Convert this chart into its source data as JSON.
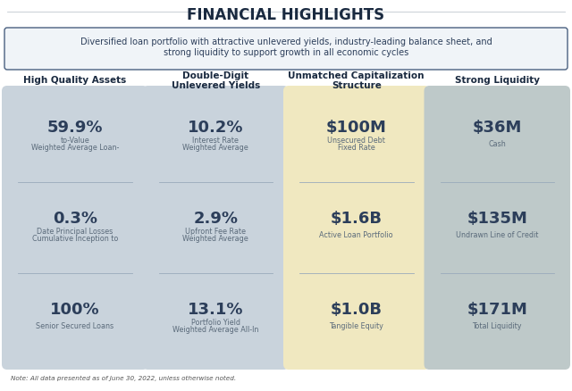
{
  "title": "FINANCIAL HIGHLIGHTS",
  "subtitle_line1": "Diversified loan portfolio with attractive unlevered yields, industry-leading balance sheet, and",
  "subtitle_line2": "strong liquidity to support growth in all economic cycles",
  "note": "Note: All data presented as of June 30, 2022, unless otherwise noted.",
  "columns": [
    {
      "header": "High Quality Assets",
      "header2": "",
      "bg_color": "#c9d3dc",
      "items": [
        {
          "value": "59.9%",
          "label": "Weighted Average Loan-\nto-Value"
        },
        {
          "value": "0.3%",
          "label": "Cumulative Inception to\nDate Principal Losses"
        },
        {
          "value": "100%",
          "label": "Senior Secured Loans"
        }
      ]
    },
    {
      "header": "Double-Digit",
      "header2": "Unlevered Yields",
      "bg_color": "#c9d3dc",
      "items": [
        {
          "value": "10.2%",
          "label": "Weighted Average\nInterest Rate"
        },
        {
          "value": "2.9%",
          "label": "Weighted Average\nUpfront Fee Rate"
        },
        {
          "value": "13.1%",
          "label": "Weighted Average All-In\nPortfolio Yield"
        }
      ]
    },
    {
      "header": "Unmatched Capitalization",
      "header2": "Structure",
      "bg_color": "#f0e8c0",
      "items": [
        {
          "value": "$100M",
          "label": "Fixed Rate\nUnsecured Debt"
        },
        {
          "value": "$1.6B",
          "label": "Active Loan Portfolio"
        },
        {
          "value": "$1.0B",
          "label": "Tangible Equity"
        }
      ]
    },
    {
      "header": "Strong Liquidity",
      "header2": "",
      "bg_color": "#bec9c9",
      "items": [
        {
          "value": "$36M",
          "label": "Cash"
        },
        {
          "value": "$135M",
          "label": "Undrawn Line of Credit"
        },
        {
          "value": "$171M",
          "label": "Total Liquidity"
        }
      ]
    }
  ],
  "bg_color": "#ffffff",
  "card_value_color": "#2c3e5a",
  "card_label_color": "#5a6a7a",
  "divider_color": "#9aaabb",
  "subtitle_box_color": "#f0f4f8",
  "subtitle_border_color": "#4a6080",
  "header_color": "#1a2a40"
}
